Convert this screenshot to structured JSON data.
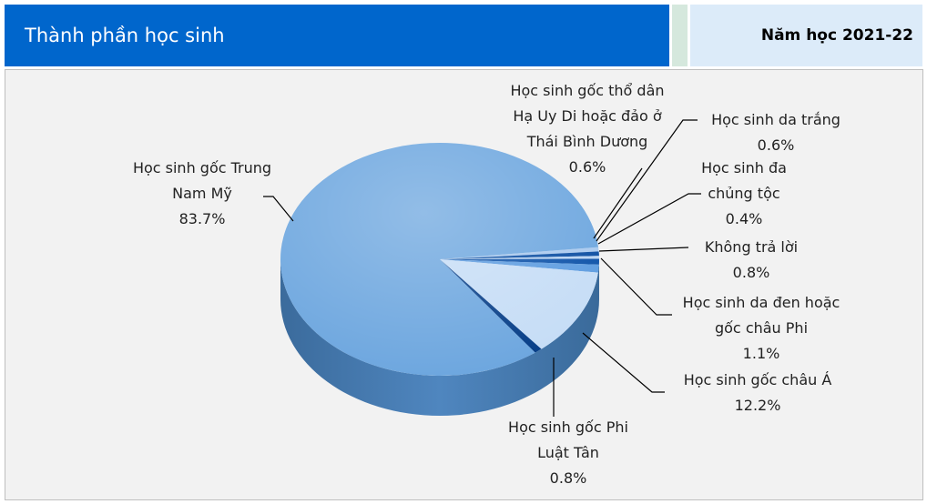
{
  "chart_data": {
    "type": "pie",
    "title": "Thành phần học sinh",
    "subtitle": "Năm học 2021-22",
    "categories": [
      "Học sinh gốc thổ dân Hạ Uy Di hoặc đảo ở Thái Bình Dương",
      "Học sinh da trắng",
      "Học sinh đa chủng tộc",
      "Không trả lời",
      "Học sinh da đen hoặc gốc châu Phi",
      "Học sinh gốc châu Á",
      "Học sinh gốc Phi Luật Tân",
      "Học sinh gốc Trung Nam Mỹ"
    ],
    "values": [
      0.6,
      0.6,
      0.4,
      0.8,
      1.1,
      12.2,
      0.8,
      83.7
    ],
    "value_labels": [
      "0.6%",
      "0.6%",
      "0.4%",
      "0.8%",
      "1.1%",
      "12.2%",
      "0.8%",
      "83.7%"
    ],
    "colors": [
      "#a9c9ee",
      "#0b4ea2",
      "#b9d4f2",
      "#0d52a8",
      "#5d9ce0",
      "#c6ddf6",
      "#083f88",
      "#6ea7df"
    ]
  }
}
